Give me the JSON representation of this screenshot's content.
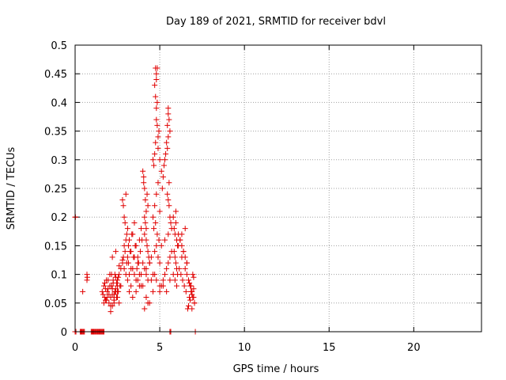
{
  "colors": {
    "series": "#e00000",
    "grid": "#a0a0a0",
    "axis": "#000000"
  },
  "chart_data": {
    "type": "scatter",
    "title": "Day 189 of 2021, SRMTID for receiver bdvl",
    "xlabel": "GPS time / hours",
    "ylabel": "SRMTID / TECUs",
    "xlim": [
      0,
      24
    ],
    "ylim": [
      0,
      0.5
    ],
    "grid": true,
    "xticks": [
      0,
      5,
      10,
      15,
      20
    ],
    "xtick_labels": [
      "0",
      "5",
      "10",
      "15",
      "20"
    ],
    "yticks": [
      0,
      0.05,
      0.1,
      0.15,
      0.2,
      0.25,
      0.3,
      0.35,
      0.4,
      0.45,
      0.5
    ],
    "ytick_labels": [
      "0",
      "0.05",
      "0.1",
      "0.15",
      "0.2",
      "0.25",
      "0.3",
      "0.35",
      "0.4",
      "0.45",
      "0.5"
    ],
    "marker": "+",
    "series": [
      {
        "name": "SRMTID",
        "x": [
          0.0,
          0.02,
          0.0,
          0.05,
          0.3,
          0.35,
          0.4,
          0.45,
          0.5,
          0.55,
          0.45,
          0.7,
          0.7,
          0.72,
          0.95,
          1.0,
          1.05,
          1.1,
          1.15,
          1.2,
          1.25,
          1.3,
          1.35,
          1.4,
          1.45,
          1.5,
          1.55,
          1.6,
          1.65,
          1.7,
          1.6,
          1.65,
          1.7,
          1.75,
          1.8,
          1.85,
          1.9,
          1.95,
          2.0,
          2.05,
          2.1,
          2.15,
          2.2,
          2.25,
          2.3,
          2.35,
          2.4,
          2.45,
          2.5,
          2.55,
          1.7,
          1.8,
          1.9,
          2.0,
          2.1,
          2.2,
          2.3,
          2.4,
          2.5,
          2.6,
          1.75,
          1.85,
          1.95,
          2.05,
          2.15,
          2.25,
          2.35,
          2.45,
          2.55,
          2.65,
          2.1,
          2.2,
          2.3,
          2.4,
          2.5,
          2.6,
          2.7,
          2.8,
          2.2,
          2.4,
          2.6,
          2.8,
          2.3,
          2.5,
          2.7,
          2.8,
          2.85,
          2.9,
          2.95,
          3.0,
          3.05,
          2.9,
          3.0,
          2.85,
          2.95,
          3.05,
          2.9,
          3.0,
          3.1,
          3.15,
          3.1,
          3.2,
          3.3,
          3.4,
          3.5,
          3.6,
          3.7,
          3.8,
          3.9,
          3.15,
          3.25,
          3.35,
          3.45,
          3.55,
          3.65,
          3.75,
          3.85,
          3.95,
          3.1,
          3.2,
          3.3,
          3.4,
          3.5,
          3.6,
          3.7,
          3.8,
          3.9,
          3.2,
          3.4,
          3.6,
          3.8,
          3.3,
          3.5,
          3.7,
          3.9,
          4.0,
          4.05,
          4.1,
          4.15,
          4.2,
          4.25,
          4.3,
          4.1,
          4.15,
          4.2,
          4.05,
          4.1,
          4.2,
          4.25,
          4.3,
          4.35,
          4.0,
          4.1,
          4.2,
          4.3,
          4.4,
          4.5,
          4.0,
          4.2,
          4.4,
          4.6,
          4.1,
          4.3,
          4.5,
          4.7,
          4.2,
          4.4,
          4.6,
          4.65,
          4.7,
          4.75,
          4.8,
          4.85,
          4.9,
          4.75,
          4.8,
          4.85,
          4.8,
          4.7,
          4.75,
          4.8,
          4.85,
          4.9,
          4.95,
          5.0,
          4.6,
          4.7,
          4.8,
          4.9,
          5.0,
          4.65,
          4.75,
          4.85,
          4.95,
          4.7,
          4.8,
          4.9,
          5.0,
          4.6,
          4.8,
          5.0,
          5.1,
          5.15,
          5.2,
          5.25,
          5.3,
          5.35,
          5.4,
          5.45,
          5.5,
          5.55,
          5.6,
          5.5,
          5.45,
          5.5,
          5.55,
          5.45,
          5.5,
          5.55,
          5.6,
          5.65,
          5.0,
          5.1,
          5.2,
          5.3,
          5.4,
          5.5,
          5.6,
          5.7,
          5.1,
          5.3,
          5.5,
          5.7,
          5.2,
          5.4,
          5.6,
          5.8,
          5.85,
          5.9,
          5.95,
          6.0,
          6.05,
          5.85,
          5.9,
          5.95,
          6.0,
          5.8,
          5.9,
          6.0,
          6.05,
          5.95,
          6.1,
          6.2,
          6.3,
          6.4,
          6.5,
          6.6,
          6.15,
          6.25,
          6.35,
          6.45,
          6.55,
          6.1,
          6.3,
          6.5,
          6.2,
          6.4,
          6.6,
          6.3,
          6.5,
          6.6,
          6.7,
          6.8,
          6.9,
          7.0,
          7.05,
          6.65,
          6.75,
          6.85,
          6.95,
          7.0,
          6.7,
          6.8,
          6.9,
          7.0,
          6.75,
          6.85,
          6.95,
          7.05,
          6.9,
          0.0,
          0.4,
          0.5,
          1.0,
          1.1,
          1.2,
          1.3,
          1.4,
          1.5,
          1.6,
          1.7,
          5.6,
          5.65,
          7.1
        ],
        "y": [
          0.2,
          0.2,
          0.0,
          0.0,
          0.0,
          0.0,
          0.0,
          0.0,
          0.0,
          0.0,
          0.07,
          0.1,
          0.09,
          0.095,
          0.0,
          0.0,
          0.0,
          0.0,
          0.0,
          0.0,
          0.0,
          0.0,
          0.0,
          0.0,
          0.0,
          0.0,
          0.0,
          0.0,
          0.0,
          0.0,
          0.07,
          0.065,
          0.08,
          0.06,
          0.075,
          0.055,
          0.07,
          0.09,
          0.065,
          0.08,
          0.06,
          0.1,
          0.075,
          0.085,
          0.05,
          0.07,
          0.095,
          0.06,
          0.08,
          0.07,
          0.05,
          0.055,
          0.06,
          0.05,
          0.045,
          0.065,
          0.055,
          0.07,
          0.06,
          0.05,
          0.085,
          0.09,
          0.075,
          0.1,
          0.08,
          0.09,
          0.1,
          0.085,
          0.095,
          0.08,
          0.035,
          0.045,
          0.065,
          0.075,
          0.09,
          0.1,
          0.11,
          0.12,
          0.13,
          0.14,
          0.115,
          0.125,
          0.06,
          0.07,
          0.08,
          0.23,
          0.22,
          0.2,
          0.19,
          0.24,
          0.17,
          0.15,
          0.16,
          0.13,
          0.14,
          0.12,
          0.11,
          0.1,
          0.13,
          0.15,
          0.18,
          0.16,
          0.14,
          0.17,
          0.19,
          0.15,
          0.13,
          0.16,
          0.18,
          0.12,
          0.14,
          0.17,
          0.13,
          0.15,
          0.11,
          0.12,
          0.14,
          0.16,
          0.09,
          0.1,
          0.08,
          0.11,
          0.1,
          0.09,
          0.12,
          0.1,
          0.08,
          0.07,
          0.06,
          0.07,
          0.08,
          0.11,
          0.13,
          0.09,
          0.1,
          0.28,
          0.27,
          0.25,
          0.23,
          0.21,
          0.24,
          0.22,
          0.2,
          0.19,
          0.18,
          0.26,
          0.17,
          0.16,
          0.15,
          0.14,
          0.13,
          0.12,
          0.11,
          0.1,
          0.09,
          0.12,
          0.13,
          0.08,
          0.06,
          0.05,
          0.07,
          0.04,
          0.05,
          0.09,
          0.1,
          0.11,
          0.12,
          0.3,
          0.29,
          0.31,
          0.33,
          0.37,
          0.4,
          0.32,
          0.46,
          0.45,
          0.46,
          0.44,
          0.43,
          0.41,
          0.39,
          0.36,
          0.34,
          0.35,
          0.3,
          0.2,
          0.22,
          0.24,
          0.26,
          0.21,
          0.18,
          0.19,
          0.17,
          0.16,
          0.14,
          0.15,
          0.13,
          0.12,
          0.1,
          0.09,
          0.08,
          0.28,
          0.25,
          0.27,
          0.29,
          0.3,
          0.31,
          0.33,
          0.36,
          0.39,
          0.37,
          0.35,
          0.38,
          0.32,
          0.34,
          0.26,
          0.24,
          0.23,
          0.22,
          0.2,
          0.19,
          0.07,
          0.08,
          0.09,
          0.1,
          0.11,
          0.12,
          0.13,
          0.14,
          0.15,
          0.16,
          0.17,
          0.18,
          0.08,
          0.07,
          0.09,
          0.2,
          0.18,
          0.17,
          0.19,
          0.16,
          0.15,
          0.14,
          0.13,
          0.12,
          0.11,
          0.1,
          0.09,
          0.08,
          0.1,
          0.21,
          0.17,
          0.16,
          0.15,
          0.14,
          0.13,
          0.12,
          0.11,
          0.1,
          0.09,
          0.08,
          0.07,
          0.15,
          0.13,
          0.11,
          0.16,
          0.14,
          0.12,
          0.17,
          0.18,
          0.1,
          0.09,
          0.08,
          0.07,
          0.06,
          0.05,
          0.04,
          0.06,
          0.08,
          0.1,
          0.095,
          0.045,
          0.055,
          0.065,
          0.075,
          0.085,
          0.07,
          0.06,
          0.05,
          0.04,
          0.0,
          0.0,
          0.0,
          0.0,
          0.0,
          0.0,
          0.0,
          0.0,
          0.0,
          0.0,
          0.0,
          0.0,
          0.0,
          0.0
        ]
      }
    ]
  }
}
